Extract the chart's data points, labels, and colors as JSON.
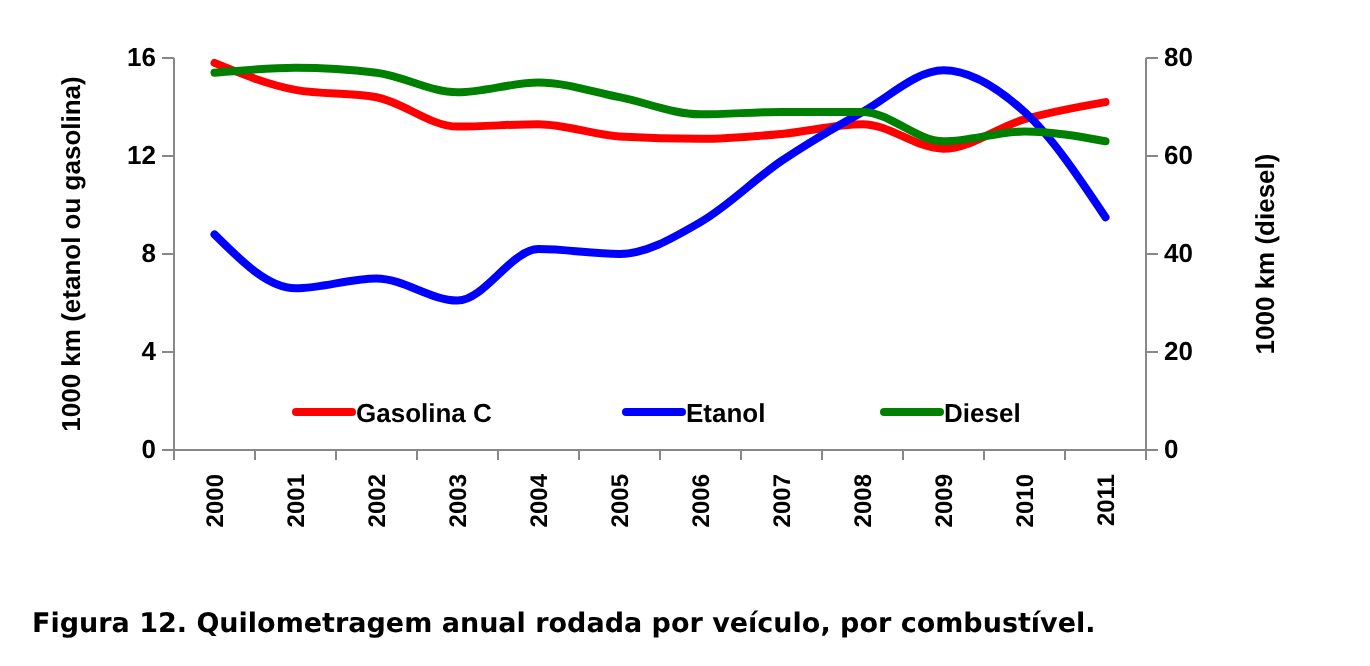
{
  "chart_data": {
    "type": "line",
    "title": "Figura 12. Quilometragem anual rodada por veículo, por combustível.",
    "ylabel": "1000 km (etanol ou gasolina)",
    "y2label": "1000 km (diesel)",
    "categories": [
      "2000",
      "2001",
      "2002",
      "2003",
      "2004",
      "2005",
      "2006",
      "2007",
      "2008",
      "2009",
      "2010",
      "2011"
    ],
    "ylim": [
      0,
      16
    ],
    "yticks": [
      0,
      4,
      8,
      12,
      16
    ],
    "y2lim": [
      0,
      80
    ],
    "y2ticks": [
      0,
      20,
      40,
      60,
      80
    ],
    "grid": false,
    "legend": "bottom",
    "marker": "none",
    "line_style": "solid",
    "series": [
      {
        "name": "Gasolina C",
        "color": "#ff0000",
        "values": [
          15.8,
          14.7,
          14.4,
          13.2,
          13.3,
          12.8,
          12.7,
          12.9,
          13.3,
          12.3,
          13.5,
          14.2
        ]
      },
      {
        "name": "Etanol",
        "color": "#0000ff",
        "values": [
          8.8,
          6.6,
          7.0,
          6.1,
          8.2,
          8.0,
          9.3,
          11.8,
          13.8,
          15.5,
          13.8,
          9.5
        ]
      },
      {
        "name": "Diesel",
        "color": "#008000",
        "axis": "y2",
        "values": [
          77,
          78,
          77,
          73,
          75,
          72,
          68.5,
          69,
          69,
          63,
          65,
          63
        ]
      }
    ]
  }
}
